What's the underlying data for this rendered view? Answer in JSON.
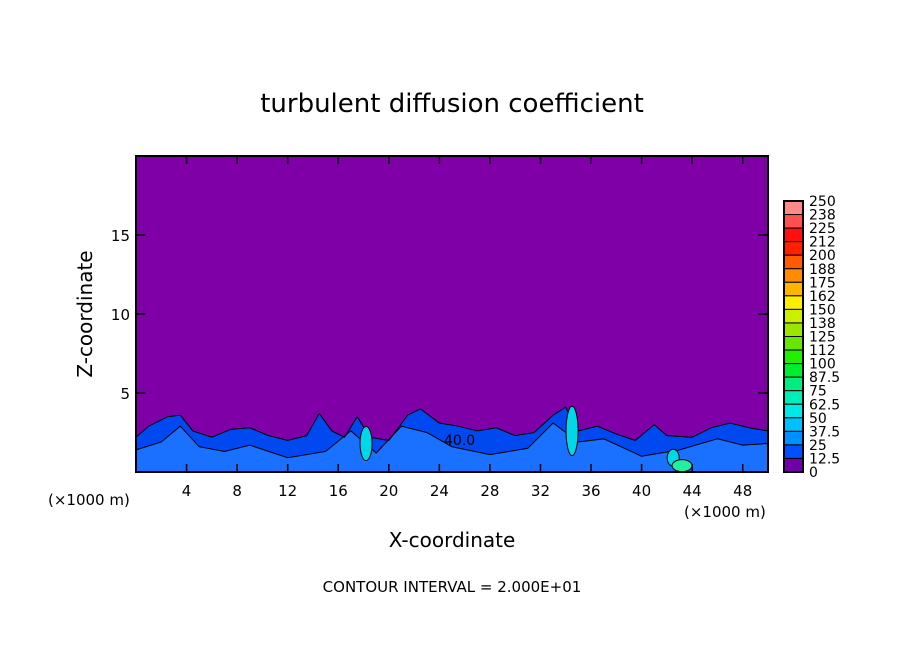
{
  "chart_data": {
    "type": "heatmap",
    "title": "turbulent diffusion coefficient",
    "xlabel": "X-coordinate",
    "ylabel": "Z-coordinate",
    "x_unit_left": "(×1000 m)",
    "x_unit_right": "(×1000 m)",
    "xlim": [
      0,
      50
    ],
    "ylim": [
      0,
      20
    ],
    "xticks": [
      4,
      8,
      12,
      16,
      20,
      24,
      28,
      32,
      36,
      40,
      44,
      48
    ],
    "yticks": [
      5,
      10,
      15
    ],
    "footer": "CONTOUR INTERVAL = 2.000E+01",
    "contour_label": "40.0",
    "colorbar": {
      "labels": [
        "250",
        "238",
        "225",
        "212",
        "200",
        "188",
        "175",
        "162",
        "150",
        "138",
        "125",
        "112",
        "100",
        "87.5",
        "75",
        "62.5",
        "50",
        "37.5",
        "25",
        "12.5",
        "0"
      ],
      "colors": [
        "#ff8888",
        "#ff5050",
        "#ff1010",
        "#ff2000",
        "#ff5a00",
        "#ff8c00",
        "#ffb400",
        "#ffee00",
        "#ccee00",
        "#99e600",
        "#66e600",
        "#22ee00",
        "#00ee30",
        "#00ee80",
        "#00eeb8",
        "#00e8e8",
        "#00c0ff",
        "#0090ff",
        "#0050ff",
        "#1020d0"
      ],
      "bottom_color": "#7000a8"
    },
    "background_color": "#8000a8"
  }
}
